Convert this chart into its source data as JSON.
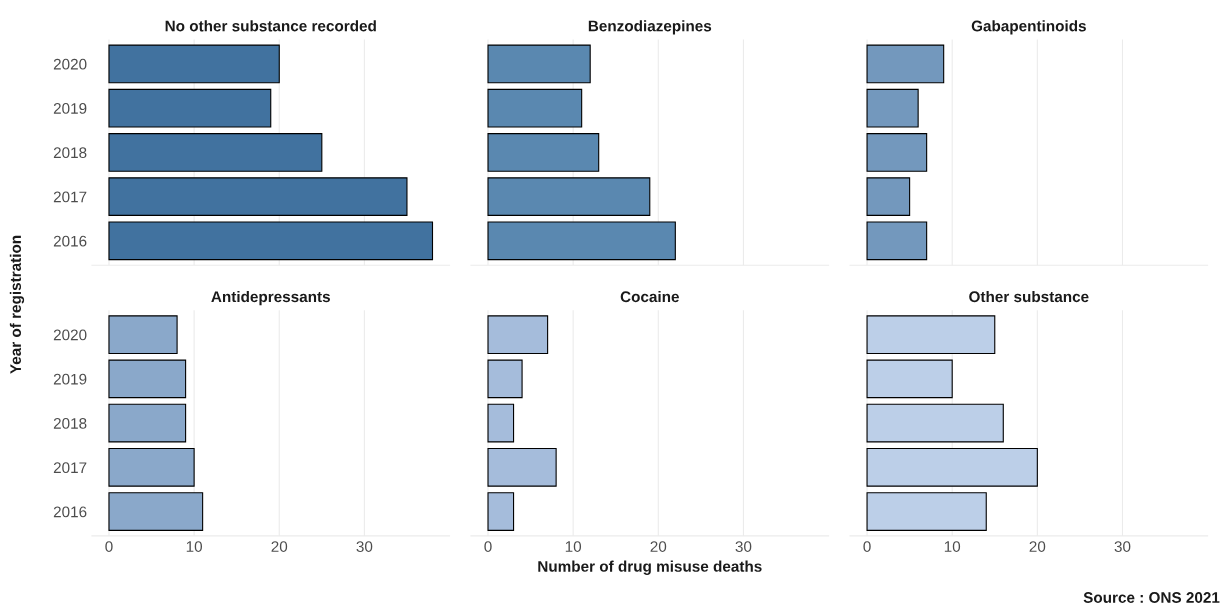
{
  "chart_data": [
    {
      "type": "bar",
      "orientation": "horizontal",
      "title": "No other substance recorded",
      "ylabel": "Year of registration",
      "categories": [
        "2020",
        "2019",
        "2018",
        "2017",
        "2016"
      ],
      "values": [
        20,
        19,
        25,
        35,
        38
      ],
      "color": "#41729f",
      "xlim": [
        -2,
        40
      ],
      "xticks": [
        0,
        10,
        20,
        30
      ],
      "grid": "x",
      "tick_labels": "y"
    },
    {
      "type": "bar",
      "orientation": "horizontal",
      "title": "Benzodiazepines",
      "categories": [
        "2020",
        "2019",
        "2018",
        "2017",
        "2016"
      ],
      "values": [
        12,
        11,
        13,
        19,
        22
      ],
      "color": "#5a88b0",
      "xlim": [
        -2,
        40
      ],
      "xticks": [
        0,
        10,
        20,
        30
      ],
      "grid": "x",
      "tick_labels": false
    },
    {
      "type": "bar",
      "orientation": "horizontal",
      "title": "Gabapentinoids",
      "categories": [
        "2020",
        "2019",
        "2018",
        "2017",
        "2016"
      ],
      "values": [
        9,
        6,
        7,
        5,
        7
      ],
      "color": "#7398bd",
      "xlim": [
        -2,
        40
      ],
      "xticks": [
        0,
        10,
        20,
        30
      ],
      "grid": "x",
      "tick_labels": false
    },
    {
      "type": "bar",
      "orientation": "horizontal",
      "title": "Antidepressants",
      "categories": [
        "2020",
        "2019",
        "2018",
        "2017",
        "2016"
      ],
      "values": [
        8,
        9,
        9,
        10,
        11
      ],
      "color": "#8aa8ca",
      "xlim": [
        -2,
        40
      ],
      "xticks": [
        0,
        10,
        20,
        30
      ],
      "grid": "x"
    },
    {
      "type": "bar",
      "orientation": "horizontal",
      "title": "Cocaine",
      "xlabel": "Number of drug misuse deaths",
      "categories": [
        "2020",
        "2019",
        "2018",
        "2017",
        "2016"
      ],
      "values": [
        7,
        4,
        3,
        8,
        3
      ],
      "color": "#a5bcdb",
      "xlim": [
        -2,
        40
      ],
      "xticks": [
        0,
        10,
        20,
        30
      ],
      "grid": "x",
      "tick_labels": "x"
    },
    {
      "type": "bar",
      "orientation": "horizontal",
      "title": "Other substance",
      "annotations": [
        "Source : ONS 2021"
      ],
      "categories": [
        "2020",
        "2019",
        "2018",
        "2017",
        "2016"
      ],
      "values": [
        15,
        10,
        16,
        20,
        14
      ],
      "color": "#bccfe8",
      "xlim": [
        -2,
        40
      ],
      "xticks": [
        0,
        10,
        20,
        30
      ],
      "grid": "x",
      "tick_labels": "x"
    }
  ]
}
